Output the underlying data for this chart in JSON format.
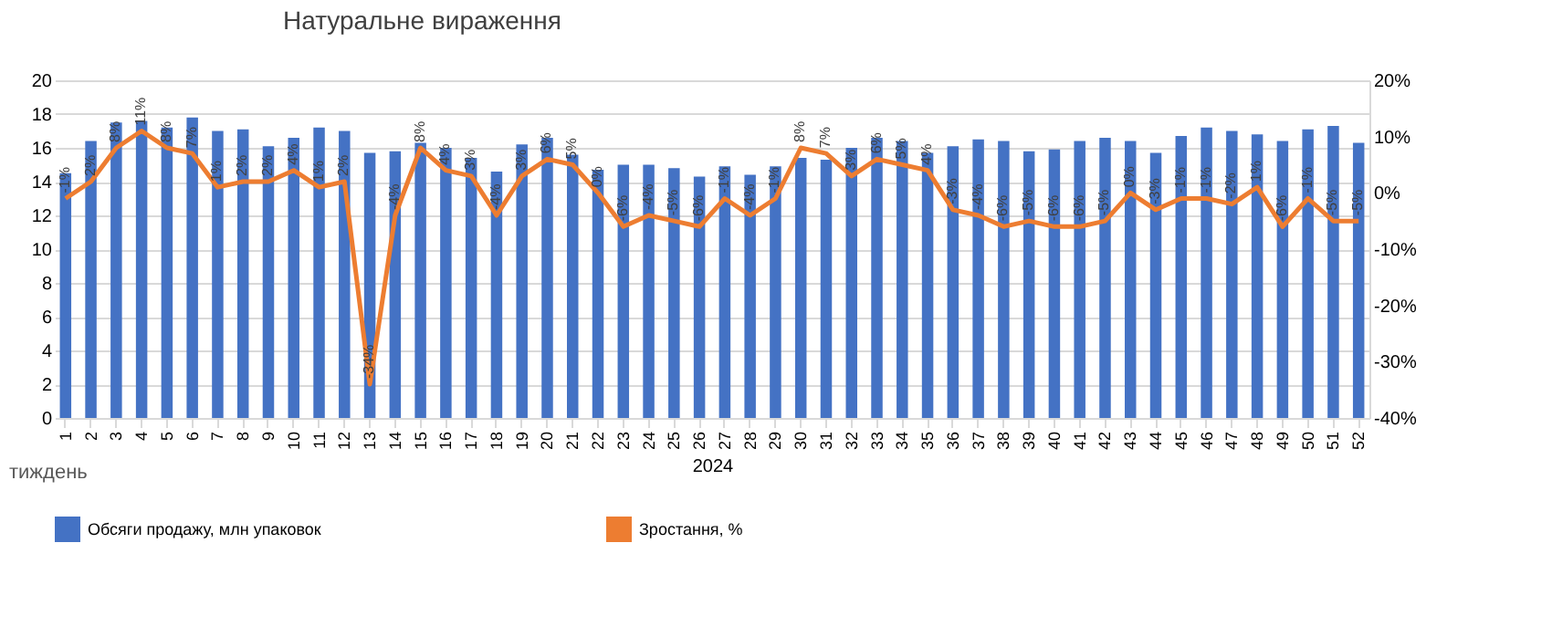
{
  "chart_data": {
    "type": "bar",
    "title": "Натуральне вираження",
    "xlabel": "2024",
    "annotations": [
      "тиждень"
    ],
    "categories": [
      "1",
      "2",
      "3",
      "4",
      "5",
      "6",
      "7",
      "8",
      "9",
      "10",
      "11",
      "12",
      "13",
      "14",
      "15",
      "16",
      "17",
      "18",
      "19",
      "20",
      "21",
      "22",
      "23",
      "24",
      "25",
      "26",
      "27",
      "28",
      "29",
      "30",
      "31",
      "32",
      "33",
      "34",
      "35",
      "36",
      "37",
      "38",
      "39",
      "40",
      "41",
      "42",
      "43",
      "44",
      "45",
      "46",
      "47",
      "48",
      "49",
      "50",
      "51",
      "52"
    ],
    "series": [
      {
        "name": "Обсяги продажу, млн упаковок",
        "axis": "y",
        "color": "#4472c4",
        "values": [
          14.5,
          16.4,
          17.5,
          17.6,
          17.2,
          17.8,
          17.0,
          17.1,
          16.1,
          16.6,
          17.2,
          17.0,
          15.7,
          15.8,
          16.3,
          16.0,
          15.4,
          14.6,
          16.2,
          16.6,
          15.6,
          14.7,
          15.0,
          15.0,
          14.8,
          14.3,
          14.9,
          14.4,
          14.9,
          15.4,
          15.3,
          16.0,
          16.6,
          16.4,
          15.7,
          16.1,
          16.5,
          16.4,
          15.8,
          15.9,
          16.4,
          16.6,
          16.4,
          15.7,
          16.7,
          17.2,
          17.0,
          16.8,
          16.4,
          17.1,
          17.3,
          16.3
        ]
      },
      {
        "name": "Зростання, %",
        "type": "line",
        "axis": "y2",
        "color": "#ed7d31",
        "values": [
          -1,
          2,
          8,
          11,
          8,
          7,
          1,
          2,
          2,
          4,
          1,
          2,
          -34,
          -4,
          8,
          4,
          3,
          -4,
          3,
          6,
          5,
          0,
          -6,
          -4,
          -5,
          -6,
          -1,
          -4,
          -1,
          8,
          7,
          3,
          6,
          5,
          4,
          -3,
          -4,
          -6,
          -5,
          -6,
          -6,
          -5,
          0,
          -3,
          -1,
          -1,
          -2,
          1,
          -6,
          -1,
          -5,
          -5
        ],
        "value_labels": [
          "-1%",
          "2%",
          "8%",
          "11%",
          "8%",
          "7%",
          "1%",
          "2%",
          "2%",
          "4%",
          "1%",
          "2%",
          "-34%",
          "-4%",
          "8%",
          "4%",
          "3%",
          "-4%",
          "3%",
          "6%",
          "5%",
          "0%",
          "-6%",
          "-4%",
          "-5%",
          "-6%",
          "-1%",
          "-4%",
          "-1%",
          "8%",
          "7%",
          "3%",
          "6%",
          "5%",
          "4%",
          "-3%",
          "-4%",
          "-6%",
          "-5%",
          "-6%",
          "-6%",
          "-5%",
          "0%",
          "-3%",
          "-1%",
          "-1%",
          "-2%",
          "1%",
          "-6%",
          "-1%",
          "-5%",
          "-5%"
        ]
      }
    ],
    "ylim": [
      0,
      20
    ],
    "yticks": [
      0,
      2,
      4,
      6,
      8,
      10,
      12,
      14,
      16,
      18,
      20
    ],
    "y2lim": [
      -40,
      20
    ],
    "y2ticks": [
      {
        "value": -40,
        "label": "-40%"
      },
      {
        "value": -30,
        "label": "-30%"
      },
      {
        "value": -20,
        "label": "-20%"
      },
      {
        "value": -10,
        "label": "-10%"
      },
      {
        "value": 0,
        "label": "0%"
      },
      {
        "value": 10,
        "label": "10%"
      },
      {
        "value": 20,
        "label": "20%"
      }
    ],
    "grid": "y",
    "legend": "bottom",
    "marker": "none",
    "line_style": "solid"
  }
}
